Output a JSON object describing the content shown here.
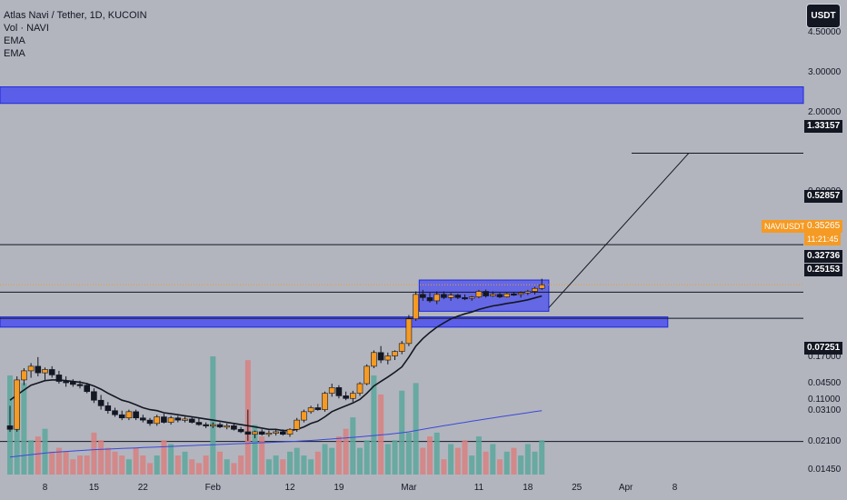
{
  "header": {
    "title": "Atlas Navi / Tether, 1D, KUCOIN",
    "indicators": [
      "Vol · NAVI",
      "EMA",
      "EMA"
    ]
  },
  "toolbar": {
    "currency_label": "USDT"
  },
  "price_axis": {
    "labels": [
      "4.50000",
      "3.00000",
      "2.00000",
      "0.90000",
      "0.60000",
      "0.40000",
      "0.17000",
      "0.11000",
      "0.04500",
      "0.03100",
      "0.02100",
      "0.01450"
    ],
    "tags": {
      "target": "1.33157",
      "resistance": "0.52857",
      "current_price": "0.35265",
      "countdown": "11:21:45",
      "box_low": "0.32736",
      "support": "0.25153",
      "low": "0.07251"
    },
    "symbol_tag": "NAVIUSDT"
  },
  "time_axis": {
    "labels": [
      "8",
      "15",
      "22",
      "Feb",
      "12",
      "19",
      "Mar",
      "11",
      "18",
      "25",
      "Apr",
      "8"
    ]
  },
  "colors": {
    "background": "#b2b5be",
    "up_candle": "#f59a23",
    "down_candle": "#131722",
    "vol_up": "#5aa79c",
    "vol_down": "#d88080",
    "zone_fill": "#4b4ff0",
    "ema_fast": "#131722",
    "ema_slow": "#3b48d8",
    "price_line": "#f59a23"
  },
  "chart_data": {
    "type": "candlestick",
    "title": "Atlas Navi / Tether, 1D, KUCOIN",
    "scale": "log",
    "ylim": [
      0.058,
      5.2
    ],
    "x_ticks": [
      {
        "label": "8",
        "index": 5
      },
      {
        "label": "15",
        "index": 12
      },
      {
        "label": "22",
        "index": 19
      },
      {
        "label": "Feb",
        "index": 29
      },
      {
        "label": "12",
        "index": 40
      },
      {
        "label": "19",
        "index": 47
      },
      {
        "label": "Mar",
        "index": 57
      },
      {
        "label": "11",
        "index": 67
      },
      {
        "label": "18",
        "index": 74
      },
      {
        "label": "25",
        "index": 81
      },
      {
        "label": "Apr",
        "index": 88
      },
      {
        "label": "8",
        "index": 95
      }
    ],
    "candles": [
      [
        0.085,
        0.104,
        0.08,
        0.082
      ],
      [
        0.082,
        0.14,
        0.08,
        0.135
      ],
      [
        0.135,
        0.152,
        0.128,
        0.148
      ],
      [
        0.148,
        0.16,
        0.138,
        0.155
      ],
      [
        0.155,
        0.17,
        0.14,
        0.145
      ],
      [
        0.145,
        0.153,
        0.135,
        0.15
      ],
      [
        0.15,
        0.155,
        0.138,
        0.142
      ],
      [
        0.142,
        0.148,
        0.13,
        0.133
      ],
      [
        0.133,
        0.14,
        0.126,
        0.132
      ],
      [
        0.132,
        0.136,
        0.126,
        0.129
      ],
      [
        0.129,
        0.134,
        0.124,
        0.128
      ],
      [
        0.128,
        0.131,
        0.118,
        0.12
      ],
      [
        0.12,
        0.124,
        0.107,
        0.11
      ],
      [
        0.11,
        0.116,
        0.1,
        0.104
      ],
      [
        0.104,
        0.108,
        0.096,
        0.099
      ],
      [
        0.099,
        0.102,
        0.093,
        0.095
      ],
      [
        0.095,
        0.099,
        0.09,
        0.092
      ],
      [
        0.092,
        0.1,
        0.09,
        0.098
      ],
      [
        0.098,
        0.1,
        0.09,
        0.092
      ],
      [
        0.092,
        0.095,
        0.088,
        0.09
      ],
      [
        0.09,
        0.092,
        0.085,
        0.087
      ],
      [
        0.087,
        0.095,
        0.085,
        0.093
      ],
      [
        0.093,
        0.096,
        0.087,
        0.088
      ],
      [
        0.088,
        0.094,
        0.086,
        0.092
      ],
      [
        0.092,
        0.094,
        0.088,
        0.09
      ],
      [
        0.09,
        0.093,
        0.088,
        0.091
      ],
      [
        0.091,
        0.093,
        0.087,
        0.088
      ],
      [
        0.088,
        0.092,
        0.085,
        0.086
      ],
      [
        0.086,
        0.088,
        0.083,
        0.085
      ],
      [
        0.085,
        0.088,
        0.083,
        0.086
      ],
      [
        0.086,
        0.088,
        0.083,
        0.084
      ],
      [
        0.084,
        0.087,
        0.082,
        0.085
      ],
      [
        0.085,
        0.087,
        0.081,
        0.082
      ],
      [
        0.082,
        0.084,
        0.079,
        0.08
      ],
      [
        0.08,
        0.1,
        0.073,
        0.078
      ],
      [
        0.078,
        0.081,
        0.075,
        0.08
      ],
      [
        0.08,
        0.082,
        0.077,
        0.078
      ],
      [
        0.078,
        0.081,
        0.076,
        0.079
      ],
      [
        0.079,
        0.082,
        0.077,
        0.08
      ],
      [
        0.08,
        0.082,
        0.077,
        0.078
      ],
      [
        0.078,
        0.083,
        0.076,
        0.082
      ],
      [
        0.082,
        0.092,
        0.08,
        0.09
      ],
      [
        0.09,
        0.1,
        0.088,
        0.098
      ],
      [
        0.098,
        0.104,
        0.096,
        0.102
      ],
      [
        0.102,
        0.106,
        0.099,
        0.1
      ],
      [
        0.1,
        0.12,
        0.098,
        0.118
      ],
      [
        0.118,
        0.13,
        0.114,
        0.125
      ],
      [
        0.125,
        0.128,
        0.112,
        0.115
      ],
      [
        0.115,
        0.12,
        0.11,
        0.112
      ],
      [
        0.112,
        0.121,
        0.108,
        0.118
      ],
      [
        0.118,
        0.132,
        0.115,
        0.13
      ],
      [
        0.13,
        0.158,
        0.128,
        0.155
      ],
      [
        0.155,
        0.182,
        0.152,
        0.178
      ],
      [
        0.178,
        0.19,
        0.16,
        0.165
      ],
      [
        0.165,
        0.178,
        0.158,
        0.172
      ],
      [
        0.172,
        0.182,
        0.165,
        0.18
      ],
      [
        0.18,
        0.2,
        0.175,
        0.195
      ],
      [
        0.195,
        0.26,
        0.19,
        0.25
      ],
      [
        0.25,
        0.33,
        0.245,
        0.32
      ],
      [
        0.32,
        0.335,
        0.3,
        0.31
      ],
      [
        0.31,
        0.325,
        0.295,
        0.3
      ],
      [
        0.3,
        0.33,
        0.29,
        0.32
      ],
      [
        0.32,
        0.33,
        0.305,
        0.31
      ],
      [
        0.31,
        0.325,
        0.3,
        0.318
      ],
      [
        0.318,
        0.322,
        0.305,
        0.31
      ],
      [
        0.31,
        0.32,
        0.302,
        0.308
      ],
      [
        0.308,
        0.315,
        0.3,
        0.312
      ],
      [
        0.312,
        0.335,
        0.308,
        0.33
      ],
      [
        0.33,
        0.336,
        0.31,
        0.315
      ],
      [
        0.315,
        0.33,
        0.312,
        0.32
      ],
      [
        0.32,
        0.325,
        0.308,
        0.312
      ],
      [
        0.312,
        0.325,
        0.31,
        0.322
      ],
      [
        0.322,
        0.328,
        0.315,
        0.32
      ],
      [
        0.32,
        0.33,
        0.31,
        0.325
      ],
      [
        0.325,
        0.335,
        0.318,
        0.33
      ],
      [
        0.33,
        0.345,
        0.32,
        0.34
      ],
      [
        0.34,
        0.375,
        0.335,
        0.3527
      ]
    ],
    "volume": [
      26,
      13,
      24,
      9,
      10,
      12,
      6,
      7,
      6,
      4,
      5,
      5,
      11,
      9,
      7,
      6,
      5,
      4,
      7,
      5,
      3,
      5,
      9,
      8,
      5,
      6,
      4,
      3,
      5,
      31,
      6,
      4,
      3,
      5,
      30,
      13,
      10,
      4,
      5,
      4,
      6,
      7,
      5,
      4,
      6,
      8,
      7,
      10,
      12,
      15,
      7,
      9,
      26,
      21,
      8,
      9,
      22,
      11,
      24,
      7,
      10,
      11,
      4,
      8,
      7,
      9,
      5,
      10,
      6,
      8,
      4,
      6,
      7,
      5,
      8,
      6,
      9
    ],
    "volume_up": [
      true,
      true,
      true,
      true,
      false,
      true,
      false,
      false,
      false,
      false,
      false,
      false,
      false,
      false,
      false,
      false,
      false,
      true,
      false,
      false,
      false,
      true,
      false,
      true,
      false,
      true,
      false,
      false,
      false,
      true,
      false,
      true,
      false,
      false,
      false,
      true,
      false,
      true,
      true,
      false,
      true,
      true,
      true,
      true,
      false,
      true,
      true,
      false,
      false,
      true,
      true,
      true,
      true,
      false,
      true,
      true,
      true,
      true,
      true,
      false,
      false,
      true,
      false,
      true,
      false,
      false,
      true,
      true,
      false,
      true,
      false,
      true,
      false,
      true,
      true,
      true,
      true
    ],
    "ema_fast": [
      0.11,
      0.116,
      0.122,
      0.128,
      0.131,
      0.134,
      0.135,
      0.135,
      0.134,
      0.133,
      0.132,
      0.13,
      0.127,
      0.123,
      0.118,
      0.114,
      0.11,
      0.108,
      0.105,
      0.102,
      0.1,
      0.099,
      0.097,
      0.096,
      0.095,
      0.094,
      0.093,
      0.092,
      0.091,
      0.09,
      0.089,
      0.088,
      0.087,
      0.086,
      0.085,
      0.084,
      0.083,
      0.082,
      0.082,
      0.081,
      0.081,
      0.082,
      0.084,
      0.087,
      0.089,
      0.093,
      0.098,
      0.101,
      0.104,
      0.107,
      0.111,
      0.118,
      0.127,
      0.133,
      0.139,
      0.146,
      0.154,
      0.17,
      0.19,
      0.205,
      0.218,
      0.23,
      0.24,
      0.25,
      0.257,
      0.263,
      0.268,
      0.275,
      0.28,
      0.285,
      0.288,
      0.292,
      0.295,
      0.299,
      0.303,
      0.309,
      0.315
    ],
    "ema_slow": [
      0.062,
      0.0625,
      0.063,
      0.0635,
      0.064,
      0.0645,
      0.065,
      0.0653,
      0.0656,
      0.0659,
      0.0662,
      0.0665,
      0.0668,
      0.067,
      0.0672,
      0.0674,
      0.0676,
      0.0678,
      0.068,
      0.0682,
      0.0684,
      0.0686,
      0.0688,
      0.069,
      0.0692,
      0.0694,
      0.0696,
      0.0698,
      0.07,
      0.0702,
      0.0704,
      0.0706,
      0.0708,
      0.071,
      0.0712,
      0.0714,
      0.0716,
      0.0718,
      0.072,
      0.0722,
      0.0724,
      0.0727,
      0.073,
      0.0733,
      0.0736,
      0.074,
      0.0744,
      0.0748,
      0.0752,
      0.0756,
      0.076,
      0.0765,
      0.077,
      0.0775,
      0.078,
      0.0786,
      0.0792,
      0.08,
      0.081,
      0.082,
      0.083,
      0.084,
      0.085,
      0.086,
      0.087,
      0.088,
      0.089,
      0.09,
      0.091,
      0.092,
      0.093,
      0.094,
      0.095,
      0.096,
      0.097,
      0.098,
      0.099
    ],
    "levels": [
      {
        "name": "resistance",
        "value": 0.52857
      },
      {
        "name": "box-low",
        "value": 0.32736
      },
      {
        "name": "support",
        "value": 0.25153
      },
      {
        "name": "low",
        "value": 0.07251
      },
      {
        "name": "target",
        "value": 1.33157
      }
    ],
    "zones": [
      {
        "name": "upper-zone",
        "low": 2.2,
        "high": 2.6,
        "from_index": -1,
        "to_index": 104
      },
      {
        "name": "support-zone",
        "low": 0.23,
        "high": 0.255,
        "from_index": -1,
        "to_index": 94
      },
      {
        "name": "consolidation-box",
        "low": 0.27,
        "high": 0.37,
        "from_index": 59,
        "to_index": 77
      }
    ],
    "projection": {
      "from": [
        77,
        0.28
      ],
      "to": [
        97,
        1.33157
      ]
    }
  }
}
